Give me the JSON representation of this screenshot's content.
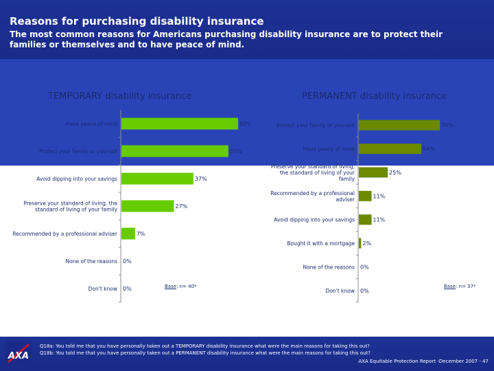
{
  "header": {
    "title": "Reasons for purchasing disability insurance",
    "subtitle": "The most common reasons for Americans purchasing disability insurance are to protect their families or themselves and to have peace of mind."
  },
  "colors": {
    "header_blue": "#1d3296",
    "band_blue": "#2a44b8",
    "temporary_bar": "#66cc00",
    "permanent_bar": "#6b8a00"
  },
  "chart_data": [
    {
      "type": "bar",
      "orientation": "horizontal",
      "title": "TEMPORARY disability insurance",
      "categories": [
        "Have peace of mind",
        "Protect your family or yourself",
        "Avoid dipping into your savings",
        "Preserve your standard of living, the standard of living of your family",
        "Recommended by a professional adviser",
        "None of the reasons",
        "Don't know"
      ],
      "values": [
        60,
        55,
        37,
        27,
        7,
        0,
        0
      ],
      "data_labels": [
        "60%",
        "55%",
        "37%",
        "27%",
        "7%",
        "0%",
        "0%"
      ],
      "xlim": [
        0,
        100
      ],
      "base_label": "Base",
      "base_text": ": n= 40*"
    },
    {
      "type": "bar",
      "orientation": "horizontal",
      "title": "PERMANENT disability insurance",
      "categories": [
        "Protect your family or yourself",
        "Have peace of mind",
        "Preserve your standard of living, the standard of living of your family",
        "Recommended by a professional adviser",
        "Avoid dipping into your savings",
        "Bought it with a mortgage",
        "None of the reasons",
        "Don't know"
      ],
      "values": [
        70,
        54,
        25,
        11,
        11,
        2,
        0,
        0
      ],
      "data_labels": [
        "70%",
        "54%",
        "25%",
        "11%",
        "11%",
        "2%",
        "0%",
        "0%"
      ],
      "xlim": [
        0,
        100
      ],
      "base_label": "Base",
      "base_text": ": n= 37*"
    }
  ],
  "footer": {
    "logo_text": "AXA",
    "q1": "Q18a: You told me that you have personally taken out a TEMPORARY disability insurance  what were the main reasons for taking this out?",
    "q2": "Q18b: You told me that you have personally taken out a PERMANENT disability insurance  what were the main reasons for taking this out?",
    "source": "AXA Equitable Protection Report -December  2007 - 47"
  }
}
